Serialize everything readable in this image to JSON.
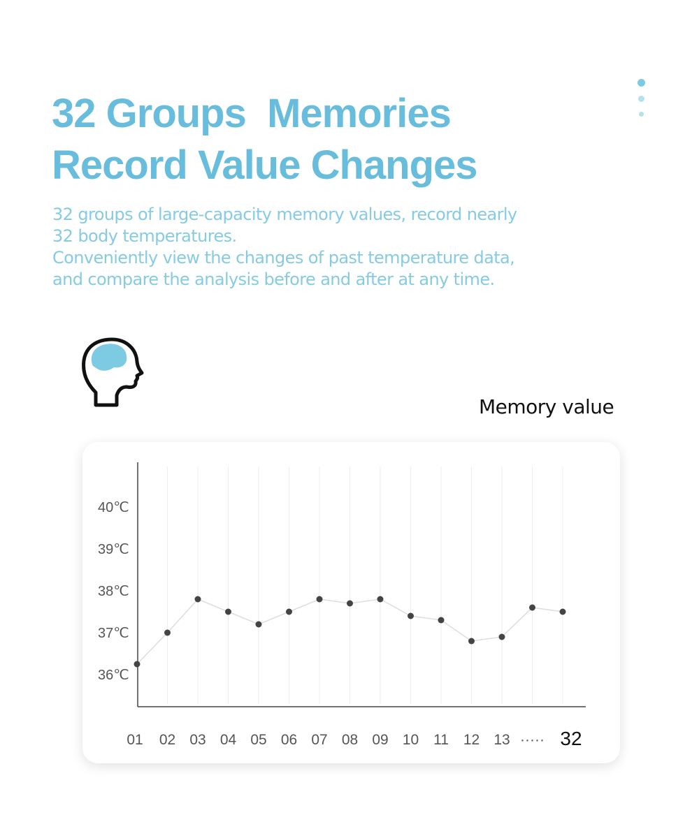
{
  "header": {
    "title_lines": [
      "32 Groups  Memories",
      "Record Value Changes"
    ],
    "description_lines": [
      "32 groups of large-capacity memory values, record nearly",
      "32 body temperatures.",
      "Conveniently view the changes of past temperature data,",
      "and compare the analysis before and after at any time."
    ],
    "accent_color": "#67bddb"
  },
  "page_indicator": {
    "count": 3,
    "active": 0
  },
  "icon": "head-brain-icon",
  "chart_data": {
    "type": "line",
    "title": "Memory value",
    "categories": [
      "01",
      "02",
      "03",
      "04",
      "05",
      "06",
      "07",
      "08",
      "09",
      "10",
      "11",
      "12",
      "13",
      "·····",
      "32"
    ],
    "values": [
      36.25,
      37.0,
      37.8,
      37.5,
      37.2,
      37.5,
      37.8,
      37.7,
      37.8,
      37.4,
      37.3,
      36.8,
      36.9,
      37.6,
      37.5
    ],
    "y_ticks": [
      "36℃",
      "37℃",
      "38℃",
      "39℃",
      "40℃"
    ],
    "y_tick_values": [
      36,
      37,
      38,
      39,
      40
    ],
    "ylim": [
      35.25,
      40.8
    ],
    "grid": "vertical",
    "line_color": "#dddddd",
    "point_color": "#444444"
  }
}
